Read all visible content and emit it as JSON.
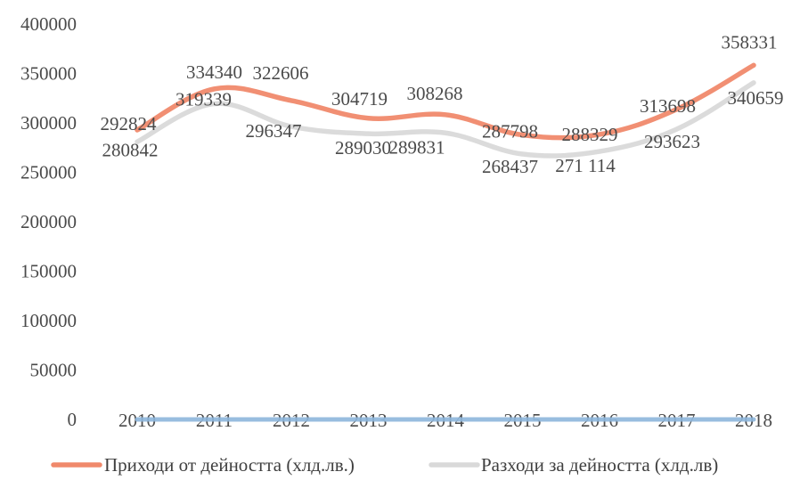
{
  "chart_data": {
    "type": "line",
    "categories": [
      "2010",
      "2011",
      "2012",
      "2013",
      "2014",
      "2015",
      "2016",
      "2017",
      "2018"
    ],
    "ylim": [
      0,
      400000
    ],
    "yticks": [
      "0",
      "50000",
      "100000",
      "150000",
      "200000",
      "250000",
      "300000",
      "350000",
      "400000"
    ],
    "grid": false,
    "legend_position": "bottom",
    "series": [
      {
        "name": "Приходи от дейността (хлд.лв.)",
        "color": "#f0896b",
        "values": [
          292824,
          334340,
          322606,
          304719,
          308268,
          287798,
          288329,
          313698,
          358331
        ],
        "labels": [
          "292824",
          "334340",
          "322606",
          "304719",
          "308268",
          "287798",
          "288329",
          "313698",
          "358331"
        ]
      },
      {
        "name": "Разходи за дейността (хлд.лв)",
        "color": "#d9d9d9",
        "values": [
          280842,
          319339,
          296347,
          289030,
          289831,
          268437,
          271114,
          293623,
          340659
        ],
        "labels": [
          "280842",
          "319339",
          "296347",
          "289030",
          "289831",
          "268437",
          "271 114",
          "293623",
          "340659"
        ]
      },
      {
        "name": "",
        "color": "#8db6dc",
        "values": [
          0,
          0,
          0,
          0,
          0,
          0,
          0,
          0,
          0
        ],
        "labels": []
      }
    ]
  }
}
